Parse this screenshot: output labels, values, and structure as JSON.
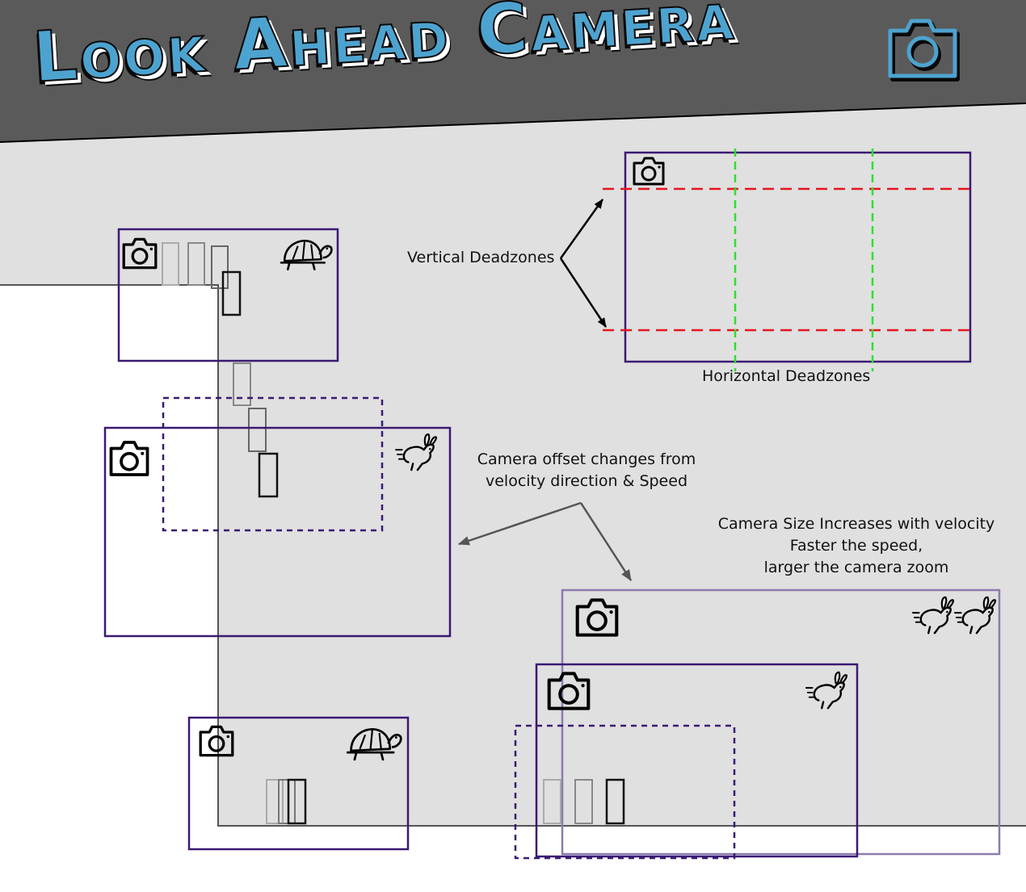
{
  "title": "Look Ahead Camera",
  "labels": {
    "vertical_deadzones": "Vertical Deadzones",
    "horizontal_deadzones": "Horizontal Deadzones",
    "offset_line1": "Camera offset changes from",
    "offset_line2": "velocity direction & Speed",
    "size_line1": "Camera Size Increases with velocity",
    "size_line2": "Faster the speed,",
    "size_line3": "larger the camera zoom"
  },
  "colors": {
    "header_bg": "#5a5a5a",
    "canvas_bg": "#e0e0e0",
    "title_fill": "#4da3cf",
    "camera_frame": "#3a1a73",
    "camera_frame_light": "#8c7aae",
    "vertical_deadzone": "#e8141e",
    "horizontal_deadzone": "#2ee02e"
  },
  "icons": {
    "camera": "camera-icon",
    "slow": "turtle-icon",
    "fast": "running-rabbit-icon"
  }
}
